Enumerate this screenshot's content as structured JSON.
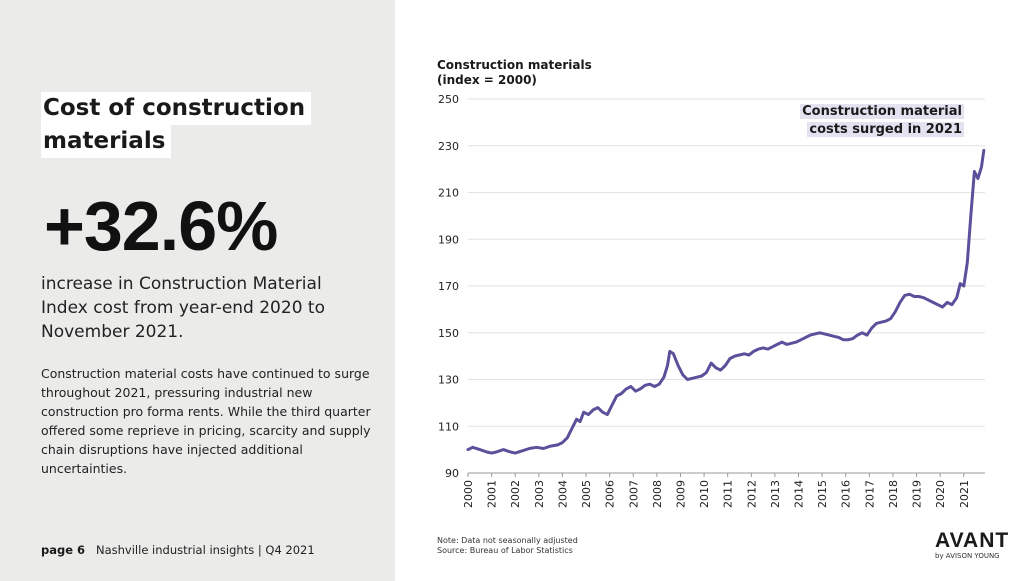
{
  "left": {
    "headline_line1": "Cost of construction",
    "headline_line2": "materials",
    "big_stat": "+32.6%",
    "stat_caption": "increase in Construction Material Index cost from year-end 2020 to November 2021.",
    "body": "Construction material costs have continued to surge throughout 2021, pressuring industrial new construction pro forma rents. While the third quarter offered some reprieve in pricing, scarcity and supply chain disruptions have injected additional uncertainties."
  },
  "footer": {
    "page_label": "page 6",
    "report_title": "Nashville industrial insights | Q4 2021",
    "note_line1": "Note: Data not seasonally adjusted",
    "note_line2": "Source: Bureau of Labor Statistics",
    "brand": "AVANT",
    "brand_sub": "by AVISON YOUNG"
  },
  "colors": {
    "line": "#5b509b",
    "panel": "#ebebea",
    "annotation_bg": "#e4e2f1"
  },
  "chart_data": {
    "type": "line",
    "title_line1": "Construction materials",
    "title_line2": "(index = 2000)",
    "annotation_line1": "Construction material",
    "annotation_line2": "costs surged in 2021",
    "xlabel": "",
    "ylabel": "",
    "ylim": [
      90,
      250
    ],
    "yticks": [
      90,
      110,
      130,
      150,
      170,
      190,
      210,
      230,
      250
    ],
    "xlim": [
      2000,
      2021.9
    ],
    "xticks": [
      "2000",
      "2001",
      "2002",
      "2003",
      "2004",
      "2005",
      "2006",
      "2007",
      "2008",
      "2009",
      "2010",
      "2011",
      "2012",
      "2013",
      "2014",
      "2015",
      "2016",
      "2017",
      "2018",
      "2019",
      "2020",
      "2021"
    ],
    "grid": true,
    "series": [
      {
        "x": [
          2000.0,
          2000.2,
          2000.5,
          2000.8,
          2001.0,
          2001.2,
          2001.5,
          2001.8,
          2002.0,
          2002.3,
          2002.6,
          2002.9,
          2003.2,
          2003.5,
          2003.8,
          2004.0,
          2004.2,
          2004.4,
          2004.6,
          2004.75,
          2004.9,
          2005.1,
          2005.3,
          2005.5,
          2005.7,
          2005.9,
          2006.1,
          2006.3,
          2006.5,
          2006.7,
          2006.9,
          2007.1,
          2007.3,
          2007.5,
          2007.7,
          2007.9,
          2008.1,
          2008.3,
          2008.45,
          2008.55,
          2008.7,
          2008.9,
          2009.1,
          2009.3,
          2009.5,
          2009.7,
          2009.9,
          2010.1,
          2010.3,
          2010.5,
          2010.7,
          2010.9,
          2011.1,
          2011.3,
          2011.5,
          2011.7,
          2011.9,
          2012.1,
          2012.3,
          2012.5,
          2012.7,
          2012.9,
          2013.1,
          2013.3,
          2013.5,
          2013.7,
          2013.9,
          2014.1,
          2014.3,
          2014.5,
          2014.7,
          2014.9,
          2015.1,
          2015.3,
          2015.5,
          2015.7,
          2015.9,
          2016.1,
          2016.3,
          2016.5,
          2016.7,
          2016.9,
          2017.1,
          2017.3,
          2017.5,
          2017.7,
          2017.9,
          2018.1,
          2018.3,
          2018.5,
          2018.7,
          2018.9,
          2019.1,
          2019.3,
          2019.5,
          2019.7,
          2019.9,
          2020.1,
          2020.3,
          2020.5,
          2020.7,
          2020.85,
          2021.0,
          2021.15,
          2021.3,
          2021.45,
          2021.6,
          2021.75,
          2021.85
        ],
        "y": [
          100,
          101,
          100,
          99,
          98.5,
          99,
          100,
          99,
          98.5,
          99.5,
          100.5,
          101,
          100.5,
          101.5,
          102,
          103,
          105,
          109,
          113,
          112,
          116,
          115,
          117,
          118,
          116,
          115,
          119,
          123,
          124,
          126,
          127,
          125,
          126,
          127.5,
          128,
          127,
          128,
          131,
          136,
          142,
          141,
          136,
          132,
          130,
          130.5,
          131,
          131.5,
          133,
          137,
          135,
          134,
          136,
          139,
          140,
          140.5,
          141,
          140.5,
          142,
          143,
          143.5,
          143,
          144,
          145,
          146,
          145,
          145.5,
          146,
          147,
          148,
          149,
          149.5,
          150,
          149.5,
          149,
          148.5,
          148,
          147,
          147,
          147.5,
          149,
          150,
          149,
          152,
          154,
          154.5,
          155,
          156,
          159,
          163,
          166,
          166.5,
          165.5,
          165.5,
          165,
          164,
          163,
          162,
          161,
          163,
          162,
          165,
          171,
          170,
          180,
          200,
          219,
          216,
          221,
          228
        ]
      }
    ]
  }
}
